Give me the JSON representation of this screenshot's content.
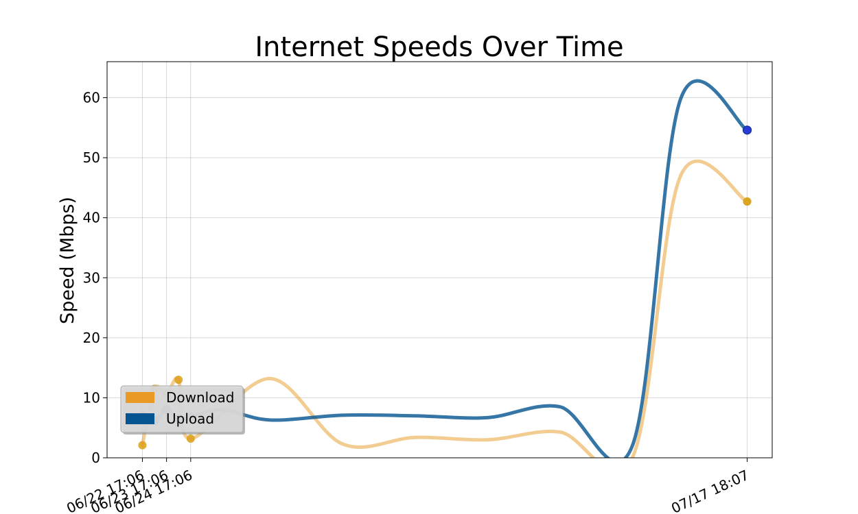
{
  "chart_data": {
    "type": "line",
    "title": "Internet Speeds Over Time",
    "xlabel": "",
    "ylabel": "Speed (Mbps)",
    "ylim": [
      0,
      66
    ],
    "yticks": [
      0,
      10,
      20,
      30,
      40,
      50,
      60
    ],
    "x_tick_labels": [
      "06/22 17:06",
      "06/23 17:06",
      "06/24 17:06",
      "07/17 18:07"
    ],
    "x_tick_dates": [
      "2023-06-22T17:06",
      "2023-06-23T17:06",
      "2023-06-24T17:06",
      "2023-07-17T18:07"
    ],
    "xlim": [
      "2023-06-21T06:00",
      "2023-07-18T19:00"
    ],
    "grid": true,
    "legend_position": "lower-left",
    "series": [
      {
        "name": "Download",
        "color": "#e89a24",
        "marker_color": "#daa520",
        "x": [
          "2023-06-22T17:06",
          "2023-06-23T05:00",
          "2023-06-23T17:06",
          "2023-06-24T05:00",
          "2023-06-24T17:06",
          "2023-06-28T00:00",
          "2023-07-01T00:00",
          "2023-07-04T00:00",
          "2023-07-07T00:00",
          "2023-07-10T00:00",
          "2023-07-13T00:00",
          "2023-07-15T00:00",
          "2023-07-17T18:07"
        ],
        "values": [
          2.1,
          11.5,
          10.6,
          13.0,
          3.2,
          13.2,
          2.3,
          3.4,
          3.0,
          4.3,
          0,
          47.0,
          42.7
        ]
      },
      {
        "name": "Upload",
        "color": "#035491",
        "marker_color": "#2a3bd6",
        "x": [
          "2023-06-22T17:06",
          "2023-06-23T05:00",
          "2023-06-23T17:06",
          "2023-06-24T05:00",
          "2023-06-24T17:06",
          "2023-06-26T00:00",
          "2023-06-28T00:00",
          "2023-07-01T00:00",
          "2023-07-04T00:00",
          "2023-07-07T00:00",
          "2023-07-10T00:00",
          "2023-07-13T00:00",
          "2023-07-15T00:00",
          "2023-07-17T18:07"
        ],
        "values": [
          7.0,
          6.2,
          8.0,
          6.5,
          6.8,
          8.0,
          6.3,
          7.1,
          7.0,
          6.7,
          8.5,
          2.0,
          59.8,
          54.6
        ]
      }
    ]
  }
}
